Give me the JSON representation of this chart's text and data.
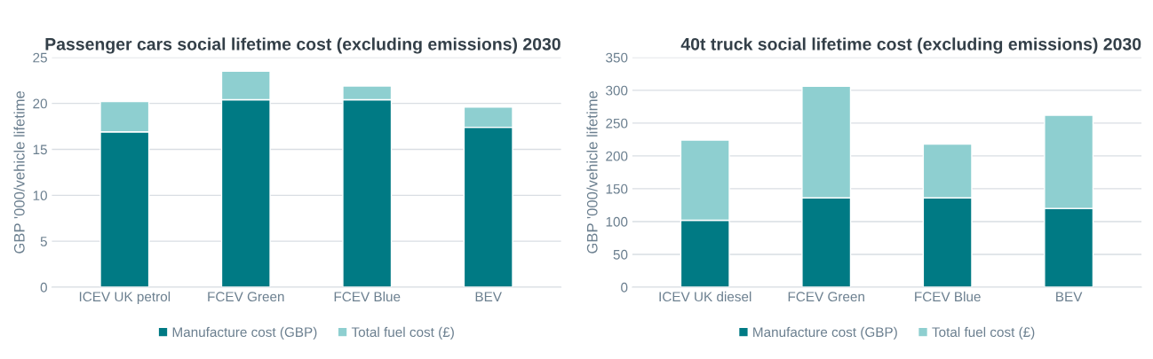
{
  "chart_data": [
    {
      "type": "bar",
      "stacked": true,
      "title": "Passenger cars social lifetime cost (excluding emissions) 2030",
      "ylabel": "GBP '000/vehicle lifetime",
      "categories": [
        "ICEV UK petrol",
        "FCEV Green",
        "FCEV Blue",
        "BEV"
      ],
      "series": [
        {
          "name": "Manufacture cost (GBP)",
          "color": "#007a84",
          "values": [
            16.9,
            20.4,
            20.4,
            17.4
          ]
        },
        {
          "name": "Total fuel cost (£)",
          "color": "#8ecfd0",
          "values": [
            3.3,
            3.1,
            1.5,
            2.2
          ]
        }
      ],
      "ylim": [
        0,
        25
      ],
      "yticks": [
        0,
        5,
        10,
        15,
        20,
        25
      ],
      "grid": "y",
      "legend": "bottom"
    },
    {
      "type": "bar",
      "stacked": true,
      "title": "40t truck social lifetime cost (excluding emissions) 2030",
      "ylabel": "GBP '000/vehicle lifetime",
      "categories": [
        "ICEV UK diesel",
        "FCEV Green",
        "FCEV Blue",
        "BEV"
      ],
      "series": [
        {
          "name": "Manufacture cost (GBP)",
          "color": "#007a84",
          "values": [
            102,
            136,
            136,
            120
          ]
        },
        {
          "name": "Total fuel cost (£)",
          "color": "#8ecfd0",
          "values": [
            122,
            170,
            82,
            142
          ]
        }
      ],
      "ylim": [
        0,
        350
      ],
      "yticks": [
        0,
        50,
        100,
        150,
        200,
        250,
        300,
        350
      ],
      "grid": "y",
      "legend": "bottom"
    }
  ]
}
